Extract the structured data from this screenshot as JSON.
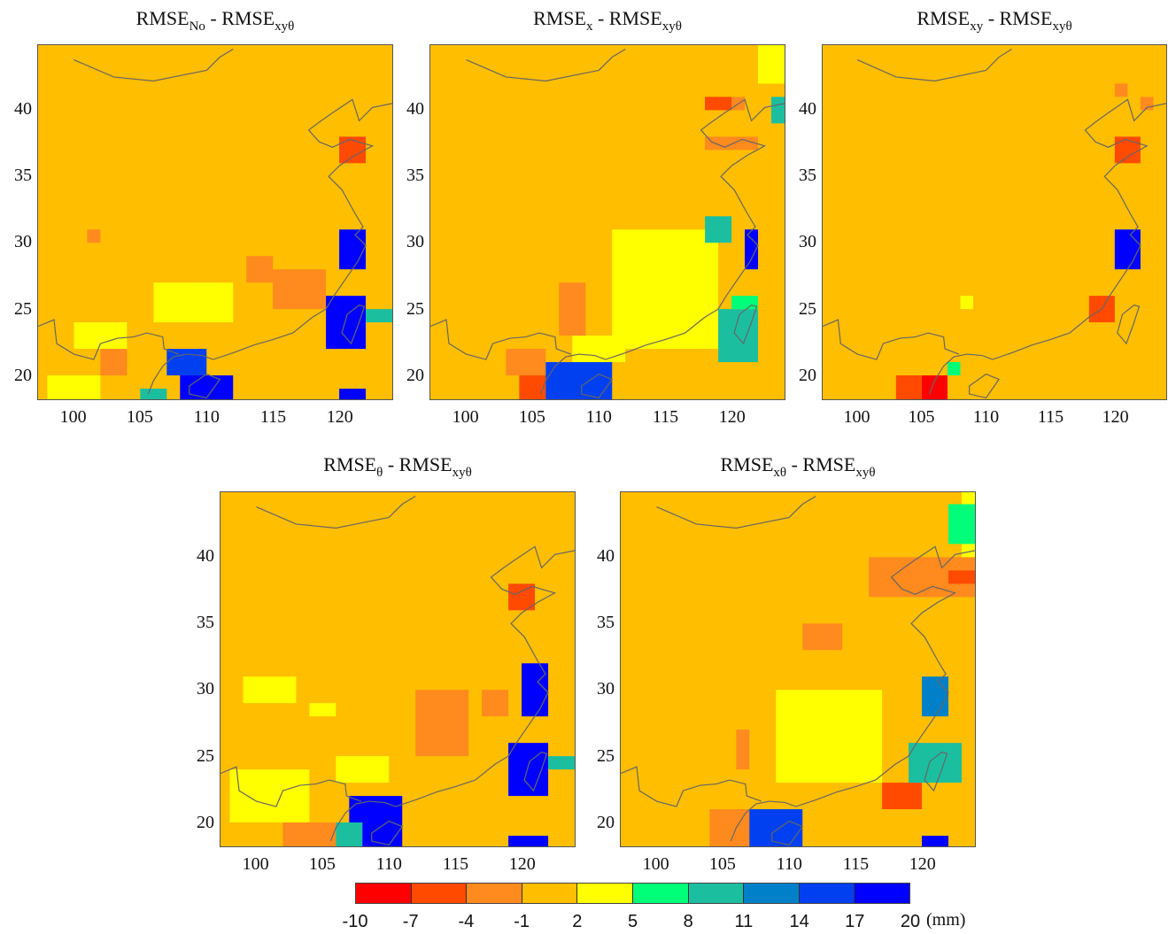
{
  "colors": {
    "background": "#FFBE00",
    "coast": "#666666"
  },
  "colorbar": {
    "ticks": [
      "-10",
      "-7",
      "-4",
      "-1",
      "2",
      "5",
      "8",
      "11",
      "14",
      "17",
      "20"
    ],
    "colors": [
      "#FF0000",
      "#FF4A00",
      "#FF8A1E",
      "#FFBE00",
      "#FFFF00",
      "#00FF78",
      "#1BBFA0",
      "#0080C8",
      "#0040F0",
      "#0000FF"
    ],
    "unit": "(mm)"
  },
  "panels": [
    {
      "title_main": "RMSE",
      "title_sub1": "No",
      "title_mid": " - RMSE",
      "title_sub2": "xyθ",
      "y_ticks": [
        "40",
        "35",
        "30",
        "25",
        "20"
      ],
      "x_ticks": [
        "100",
        "105",
        "110",
        "115",
        "120"
      ],
      "patches": [
        {
          "c": 4,
          "lon": [
            106,
            112
          ],
          "lat": [
            24,
            27
          ]
        },
        {
          "c": 4,
          "lon": [
            100,
            104
          ],
          "lat": [
            22,
            24
          ]
        },
        {
          "c": 4,
          "lon": [
            98,
            102
          ],
          "lat": [
            18,
            20
          ]
        },
        {
          "c": 4,
          "lon": [
            109,
            111
          ],
          "lat": [
            26,
            27
          ]
        },
        {
          "c": 2,
          "lon": [
            115,
            119
          ],
          "lat": [
            25,
            28
          ]
        },
        {
          "c": 2,
          "lon": [
            113,
            115
          ],
          "lat": [
            27,
            29
          ]
        },
        {
          "c": 2,
          "lon": [
            101,
            102
          ],
          "lat": [
            30,
            31
          ]
        },
        {
          "c": 2,
          "lon": [
            102,
            104
          ],
          "lat": [
            20,
            22
          ]
        },
        {
          "c": 1,
          "lon": [
            120,
            122
          ],
          "lat": [
            36,
            38
          ]
        },
        {
          "c": 8,
          "lon": [
            107,
            110
          ],
          "lat": [
            20,
            22
          ]
        },
        {
          "c": 9,
          "lon": [
            108,
            112
          ],
          "lat": [
            18,
            20
          ]
        },
        {
          "c": 9,
          "lon": [
            120,
            122
          ],
          "lat": [
            28,
            31
          ]
        },
        {
          "c": 9,
          "lon": [
            119,
            122
          ],
          "lat": [
            22,
            26
          ]
        },
        {
          "c": 9,
          "lon": [
            120,
            122
          ],
          "lat": [
            18,
            19
          ]
        },
        {
          "c": 6,
          "lon": [
            122,
            124
          ],
          "lat": [
            24,
            25
          ]
        },
        {
          "c": 6,
          "lon": [
            105,
            107
          ],
          "lat": [
            18,
            19
          ]
        }
      ]
    },
    {
      "title_main": "RMSE",
      "title_sub1": "x",
      "title_mid": " - RMSE",
      "title_sub2": "xyθ",
      "y_ticks": [
        "40",
        "35",
        "30",
        "25",
        "20"
      ],
      "x_ticks": [
        "100",
        "105",
        "110",
        "115",
        "120"
      ],
      "patches": [
        {
          "c": 4,
          "lon": [
            111,
            119
          ],
          "lat": [
            22,
            31
          ]
        },
        {
          "c": 4,
          "lon": [
            108,
            112
          ],
          "lat": [
            21,
            23
          ]
        },
        {
          "c": 4,
          "lon": [
            122,
            124
          ],
          "lat": [
            42,
            45
          ]
        },
        {
          "c": 2,
          "lon": [
            107,
            109
          ],
          "lat": [
            23,
            27
          ]
        },
        {
          "c": 2,
          "lon": [
            103,
            106
          ],
          "lat": [
            20,
            22
          ]
        },
        {
          "c": 2,
          "lon": [
            118,
            122
          ],
          "lat": [
            37,
            38
          ]
        },
        {
          "c": 2,
          "lon": [
            118,
            121
          ],
          "lat": [
            40,
            41
          ]
        },
        {
          "c": 1,
          "lon": [
            104,
            106
          ],
          "lat": [
            18,
            20
          ]
        },
        {
          "c": 1,
          "lon": [
            118,
            120
          ],
          "lat": [
            40,
            41
          ]
        },
        {
          "c": 8,
          "lon": [
            106,
            111
          ],
          "lat": [
            18,
            21
          ]
        },
        {
          "c": 9,
          "lon": [
            121,
            122
          ],
          "lat": [
            28,
            31
          ]
        },
        {
          "c": 6,
          "lon": [
            118,
            120
          ],
          "lat": [
            30,
            32
          ]
        },
        {
          "c": 6,
          "lon": [
            119,
            122
          ],
          "lat": [
            21,
            25
          ]
        },
        {
          "c": 5,
          "lon": [
            120,
            122
          ],
          "lat": [
            25,
            26
          ]
        },
        {
          "c": 6,
          "lon": [
            123,
            124
          ],
          "lat": [
            39,
            41
          ]
        }
      ]
    },
    {
      "title_main": "RMSE",
      "title_sub1": "xy",
      "title_mid": " - RMSE",
      "title_sub2": "xyθ",
      "y_ticks": [
        "40",
        "35",
        "30",
        "25",
        "20"
      ],
      "x_ticks": [
        "100",
        "105",
        "110",
        "115",
        "120"
      ],
      "patches": [
        {
          "c": 1,
          "lon": [
            120,
            122
          ],
          "lat": [
            36,
            38
          ]
        },
        {
          "c": 1,
          "lon": [
            118,
            120
          ],
          "lat": [
            24,
            26
          ]
        },
        {
          "c": 0,
          "lon": [
            105,
            107
          ],
          "lat": [
            18,
            20
          ]
        },
        {
          "c": 1,
          "lon": [
            103,
            105
          ],
          "lat": [
            18,
            20
          ]
        },
        {
          "c": 2,
          "lon": [
            120,
            121
          ],
          "lat": [
            41,
            42
          ]
        },
        {
          "c": 2,
          "lon": [
            122,
            123
          ],
          "lat": [
            40,
            41
          ]
        },
        {
          "c": 9,
          "lon": [
            120,
            122
          ],
          "lat": [
            28,
            31
          ]
        },
        {
          "c": 4,
          "lon": [
            108,
            109
          ],
          "lat": [
            25,
            26
          ]
        },
        {
          "c": 5,
          "lon": [
            107,
            108
          ],
          "lat": [
            20,
            21
          ]
        }
      ]
    },
    {
      "title_main": "RMSE",
      "title_sub1": "θ",
      "title_mid": " - RMSE",
      "title_sub2": "xyθ",
      "y_ticks": [
        "40",
        "35",
        "30",
        "25",
        "20"
      ],
      "x_ticks": [
        "100",
        "105",
        "110",
        "115",
        "120"
      ],
      "patches": [
        {
          "c": 4,
          "lon": [
            98,
            104
          ],
          "lat": [
            20,
            24
          ]
        },
        {
          "c": 4,
          "lon": [
            99,
            103
          ],
          "lat": [
            29,
            31
          ]
        },
        {
          "c": 4,
          "lon": [
            106,
            110
          ],
          "lat": [
            23,
            25
          ]
        },
        {
          "c": 4,
          "lon": [
            104,
            106
          ],
          "lat": [
            28,
            29
          ]
        },
        {
          "c": 2,
          "lon": [
            112,
            116
          ],
          "lat": [
            25,
            30
          ]
        },
        {
          "c": 2,
          "lon": [
            117,
            119
          ],
          "lat": [
            28,
            30
          ]
        },
        {
          "c": 2,
          "lon": [
            102,
            106
          ],
          "lat": [
            18,
            20
          ]
        },
        {
          "c": 1,
          "lon": [
            119,
            121
          ],
          "lat": [
            36,
            38
          ]
        },
        {
          "c": 9,
          "lon": [
            107,
            111
          ],
          "lat": [
            18,
            22
          ]
        },
        {
          "c": 9,
          "lon": [
            119,
            122
          ],
          "lat": [
            22,
            26
          ]
        },
        {
          "c": 9,
          "lon": [
            120,
            122
          ],
          "lat": [
            28,
            32
          ]
        },
        {
          "c": 9,
          "lon": [
            119,
            122
          ],
          "lat": [
            18,
            19
          ]
        },
        {
          "c": 6,
          "lon": [
            106,
            108
          ],
          "lat": [
            18,
            20
          ]
        },
        {
          "c": 6,
          "lon": [
            122,
            124
          ],
          "lat": [
            24,
            25
          ]
        }
      ]
    },
    {
      "title_main": "RMSE",
      "title_sub1": "xθ",
      "title_mid": " - RMSE",
      "title_sub2": "xyθ",
      "y_ticks": [
        "40",
        "35",
        "30",
        "25",
        "20"
      ],
      "x_ticks": [
        "100",
        "105",
        "110",
        "115",
        "120"
      ],
      "patches": [
        {
          "c": 4,
          "lon": [
            109,
            117
          ],
          "lat": [
            23,
            30
          ]
        },
        {
          "c": 4,
          "lon": [
            123,
            124
          ],
          "lat": [
            39,
            45
          ]
        },
        {
          "c": 2,
          "lon": [
            104,
            108
          ],
          "lat": [
            18,
            21
          ]
        },
        {
          "c": 2,
          "lon": [
            106,
            107
          ],
          "lat": [
            24,
            27
          ]
        },
        {
          "c": 2,
          "lon": [
            111,
            114
          ],
          "lat": [
            33,
            35
          ]
        },
        {
          "c": 2,
          "lon": [
            116,
            124
          ],
          "lat": [
            37,
            40
          ]
        },
        {
          "c": 1,
          "lon": [
            117,
            120
          ],
          "lat": [
            21,
            23
          ]
        },
        {
          "c": 1,
          "lon": [
            122,
            124
          ],
          "lat": [
            38,
            39
          ]
        },
        {
          "c": 8,
          "lon": [
            107,
            111
          ],
          "lat": [
            18,
            21
          ]
        },
        {
          "c": 6,
          "lon": [
            119,
            123
          ],
          "lat": [
            23,
            26
          ]
        },
        {
          "c": 7,
          "lon": [
            120,
            122
          ],
          "lat": [
            28,
            31
          ]
        },
        {
          "c": 9,
          "lon": [
            120,
            122
          ],
          "lat": [
            18,
            19
          ]
        },
        {
          "c": 5,
          "lon": [
            122,
            124
          ],
          "lat": [
            41,
            44
          ]
        }
      ]
    }
  ]
}
